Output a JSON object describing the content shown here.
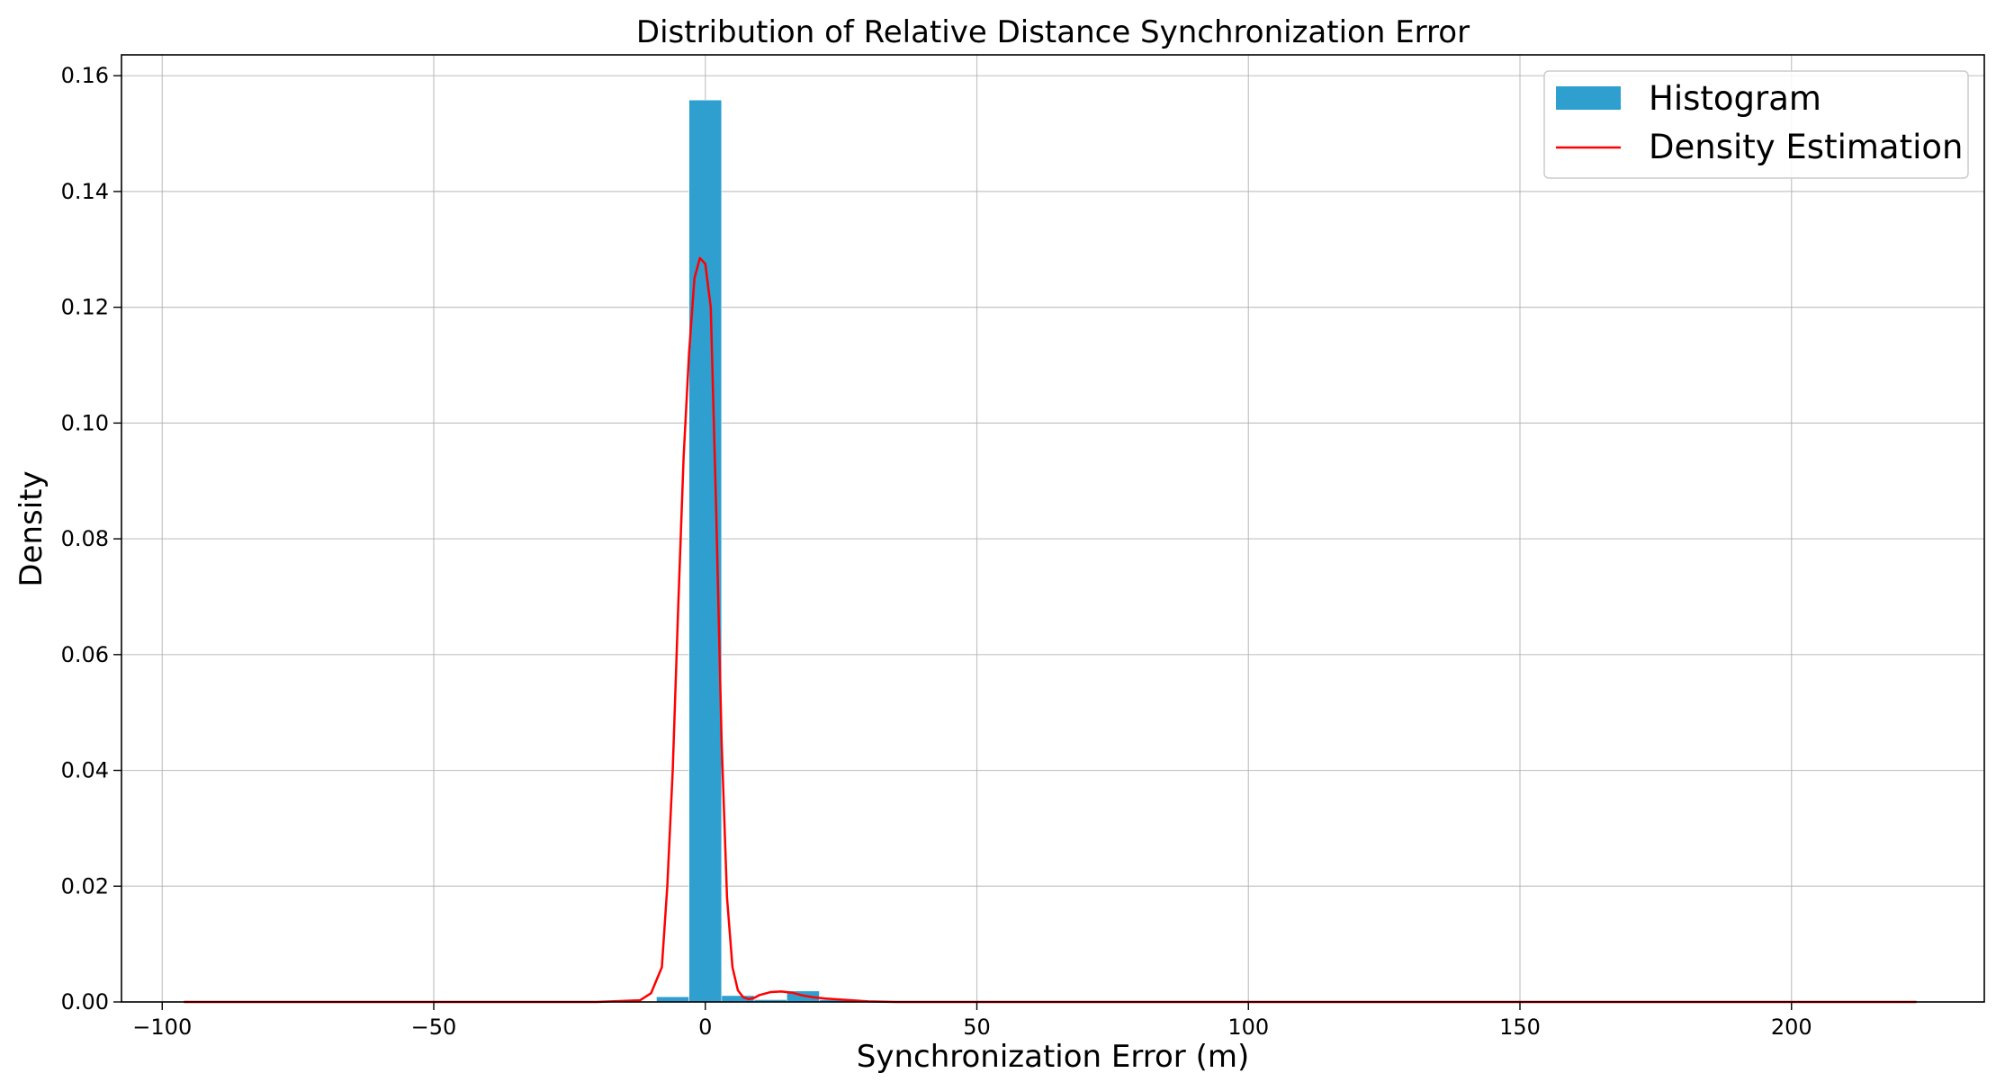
{
  "chart_data": {
    "type": "bar",
    "title": "Distribution of Relative Distance Synchronization Error",
    "xlabel": "Synchronization  Error (m)",
    "ylabel": "Density",
    "xlim": [
      -107.5,
      235.5
    ],
    "ylim": [
      0,
      0.1636
    ],
    "grid": true,
    "legend_position": "top-right",
    "xticks": [
      -100,
      -50,
      0,
      50,
      100,
      150,
      200
    ],
    "xtick_labels": [
      "−100",
      "−50",
      "0",
      "50",
      "100",
      "150",
      "200"
    ],
    "yticks": [
      0.0,
      0.02,
      0.04,
      0.06,
      0.08,
      0.1,
      0.12,
      0.14,
      0.16
    ],
    "ytick_labels": [
      "0.00",
      "0.02",
      "0.04",
      "0.06",
      "0.08",
      "0.10",
      "0.12",
      "0.14",
      "0.16"
    ],
    "histogram": {
      "name": "Histogram",
      "color": "#2e9fcf",
      "bins": [
        {
          "x0": -9,
          "x1": -3,
          "density": 0.0009
        },
        {
          "x0": -3,
          "x1": 3,
          "density": 0.1558
        },
        {
          "x0": 3,
          "x1": 9,
          "density": 0.0011
        },
        {
          "x0": 9,
          "x1": 15,
          "density": 0.0004
        },
        {
          "x0": 15,
          "x1": 21,
          "density": 0.0019
        },
        {
          "x0": 21,
          "x1": 27,
          "density": 0.0004
        }
      ]
    },
    "density_line": {
      "name": "Density Estimation",
      "color": "#ff0000",
      "x": [
        -96,
        -50,
        -20,
        -12,
        -10,
        -8,
        -7,
        -6,
        -5,
        -4,
        -3,
        -2,
        -1,
        0,
        1,
        2,
        3,
        4,
        5,
        6,
        7,
        8,
        9,
        10,
        12,
        14,
        16,
        18,
        20,
        22,
        25,
        30,
        35,
        40,
        60,
        100,
        150,
        200,
        223
      ],
      "y": [
        0.0,
        0.0,
        0.0,
        0.0003,
        0.0015,
        0.006,
        0.02,
        0.04,
        0.068,
        0.094,
        0.112,
        0.125,
        0.1285,
        0.1275,
        0.12,
        0.085,
        0.045,
        0.018,
        0.006,
        0.002,
        0.0008,
        0.0005,
        0.0007,
        0.0012,
        0.0017,
        0.0018,
        0.0016,
        0.0011,
        0.0008,
        0.0006,
        0.0004,
        0.0001,
        0.0,
        0.0,
        0.0,
        0.0,
        0.0,
        0.0,
        0.0
      ]
    }
  }
}
